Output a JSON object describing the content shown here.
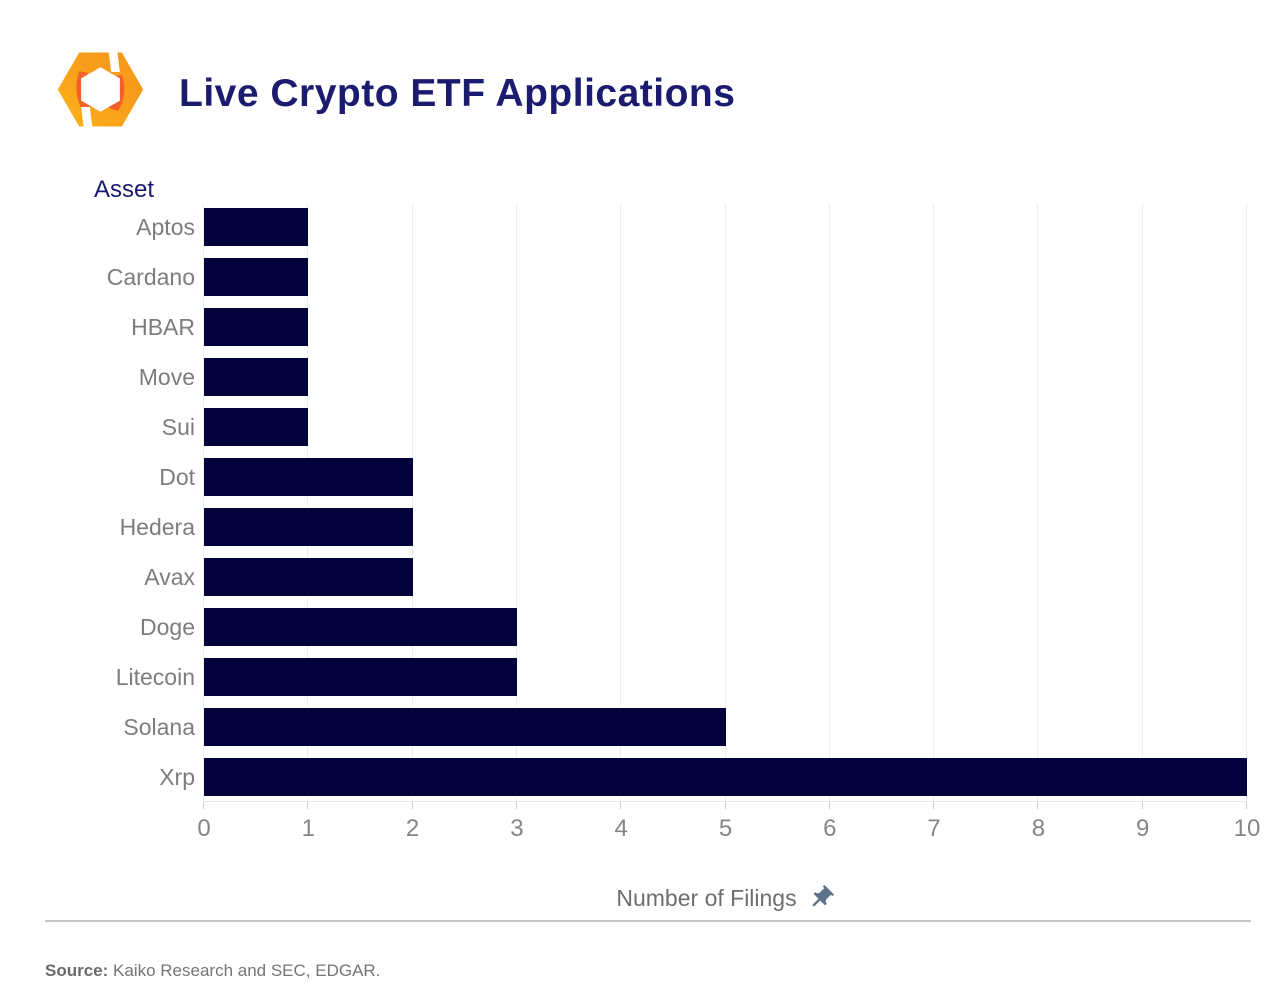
{
  "header": {
    "title": "Live Crypto ETF Applications"
  },
  "icons": {
    "logo": "kaiko-logo-icon",
    "xlabel_pin": "pushpin-icon"
  },
  "chart_data": {
    "type": "bar",
    "orientation": "horizontal",
    "title": "Live Crypto ETF Applications",
    "ylabel": "Asset",
    "xlabel": "Number of Filings",
    "categories": [
      "Aptos",
      "Cardano",
      "HBAR",
      "Move",
      "Sui",
      "Dot",
      "Hedera",
      "Avax",
      "Doge",
      "Litecoin",
      "Solana",
      "Xrp"
    ],
    "values": [
      1,
      1,
      1,
      1,
      1,
      2,
      2,
      2,
      3,
      3,
      5,
      10
    ],
    "x_ticks": [
      0,
      1,
      2,
      3,
      4,
      5,
      6,
      7,
      8,
      9,
      10
    ],
    "xlim": [
      0,
      10
    ],
    "grid": true,
    "legend": false,
    "bar_color": "#04023c"
  },
  "footer": {
    "source_label": "Source:",
    "source_text": "Kaiko Research and SEC, EDGAR."
  },
  "colors": {
    "title": "#1b1b70",
    "category_label": "#7d7d7d",
    "tick_label": "#858585",
    "axis_title": "#6e6e6e",
    "gridline": "#ededed",
    "pin": "#5d7189",
    "logo_orange": "#f9a11b",
    "logo_yellow": "#fdb515",
    "logo_deep_orange": "#f15a29",
    "source_text": "#757575"
  }
}
